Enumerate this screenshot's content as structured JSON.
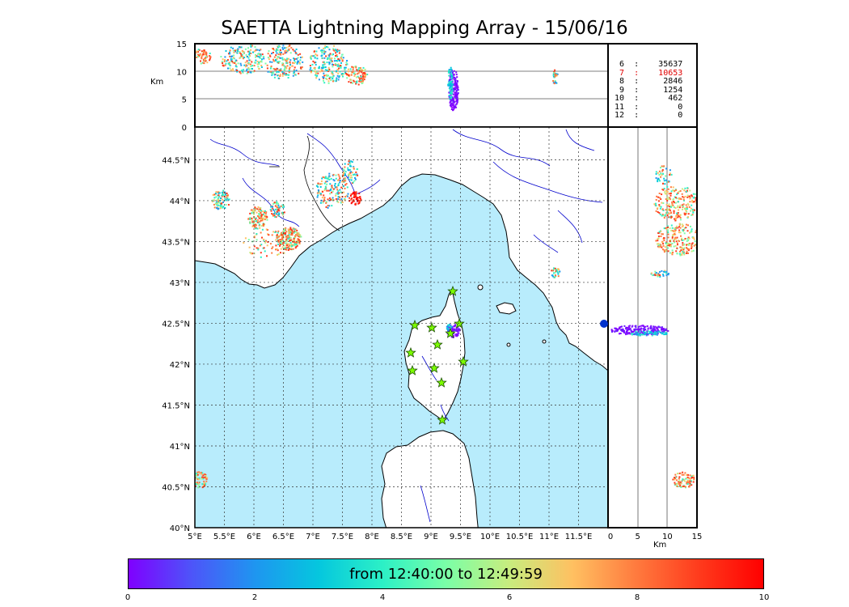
{
  "title": "SAETTA Lightning Mapping Array - 15/06/16",
  "altitude_axis": {
    "label": "Km",
    "ticks": [
      "15",
      "10",
      "5",
      "0"
    ]
  },
  "side_axis": {
    "label": "Km",
    "ticks": [
      "0",
      "5",
      "10",
      "15"
    ]
  },
  "map": {
    "lat_ticks": [
      "44.5°N",
      "44°N",
      "43.5°N",
      "43°N",
      "42.5°N",
      "42°N",
      "41.5°N",
      "41°N",
      "40.5°N",
      "40°N"
    ],
    "lon_ticks": [
      "5°E",
      "5.5°E",
      "6°E",
      "6.5°E",
      "7°E",
      "7.5°E",
      "8°E",
      "8.5°E",
      "9°E",
      "9.5°E",
      "10°E",
      "10.5°E",
      "11°E",
      "11.5°E"
    ],
    "sea_color": "#b8ecfc",
    "land_color": "#ffffff",
    "river_color": "#0000cc"
  },
  "station_counts": [
    {
      "text": " 6  :    35637",
      "highlight": false
    },
    {
      "text": " 7  :    10653",
      "highlight": true
    },
    {
      "text": " 8  :     2846",
      "highlight": false
    },
    {
      "text": " 9  :     1254",
      "highlight": false
    },
    {
      "text": "10  :      462",
      "highlight": false
    },
    {
      "text": "11  :        0",
      "highlight": false
    },
    {
      "text": "12  :        0",
      "highlight": false
    }
  ],
  "colorbar": {
    "label": "from 12:40:00 to 12:49:59",
    "ticks": [
      "0",
      "2",
      "4",
      "6",
      "8",
      "10"
    ]
  }
}
